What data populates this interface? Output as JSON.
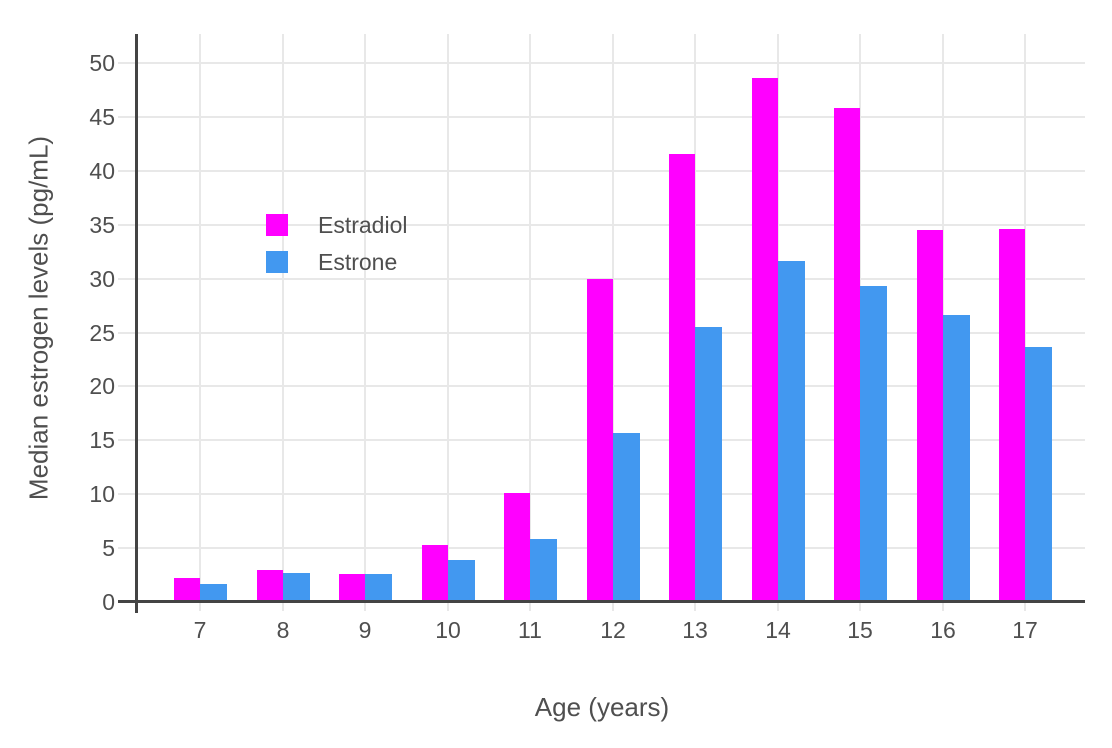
{
  "chart_data": {
    "type": "bar",
    "title": "",
    "xlabel": "Age (years)",
    "ylabel": "Median estrogen levels (pg/mL)",
    "categories": [
      "7",
      "8",
      "9",
      "10",
      "11",
      "12",
      "13",
      "14",
      "15",
      "16",
      "17"
    ],
    "series": [
      {
        "name": "Estradiol",
        "color": "#FF00FF",
        "values": [
          2.2,
          3.0,
          2.6,
          5.3,
          10.1,
          30.0,
          41.6,
          48.6,
          45.8,
          34.5,
          34.6
        ]
      },
      {
        "name": "Estrone",
        "color": "#4298F0",
        "values": [
          1.7,
          2.7,
          2.6,
          3.9,
          5.8,
          15.7,
          25.5,
          31.6,
          29.3,
          26.6,
          23.7
        ]
      }
    ],
    "ylim": [
      0,
      52.7
    ],
    "yticks": [
      0,
      5,
      10,
      15,
      20,
      25,
      30,
      35,
      40,
      45,
      50
    ],
    "grid": true,
    "legend_position": "inside-top-left",
    "colors": {
      "axis": "#444444",
      "gridline": "#e8e8e8",
      "text": "#4f4f4f",
      "background": "#ffffff"
    }
  }
}
